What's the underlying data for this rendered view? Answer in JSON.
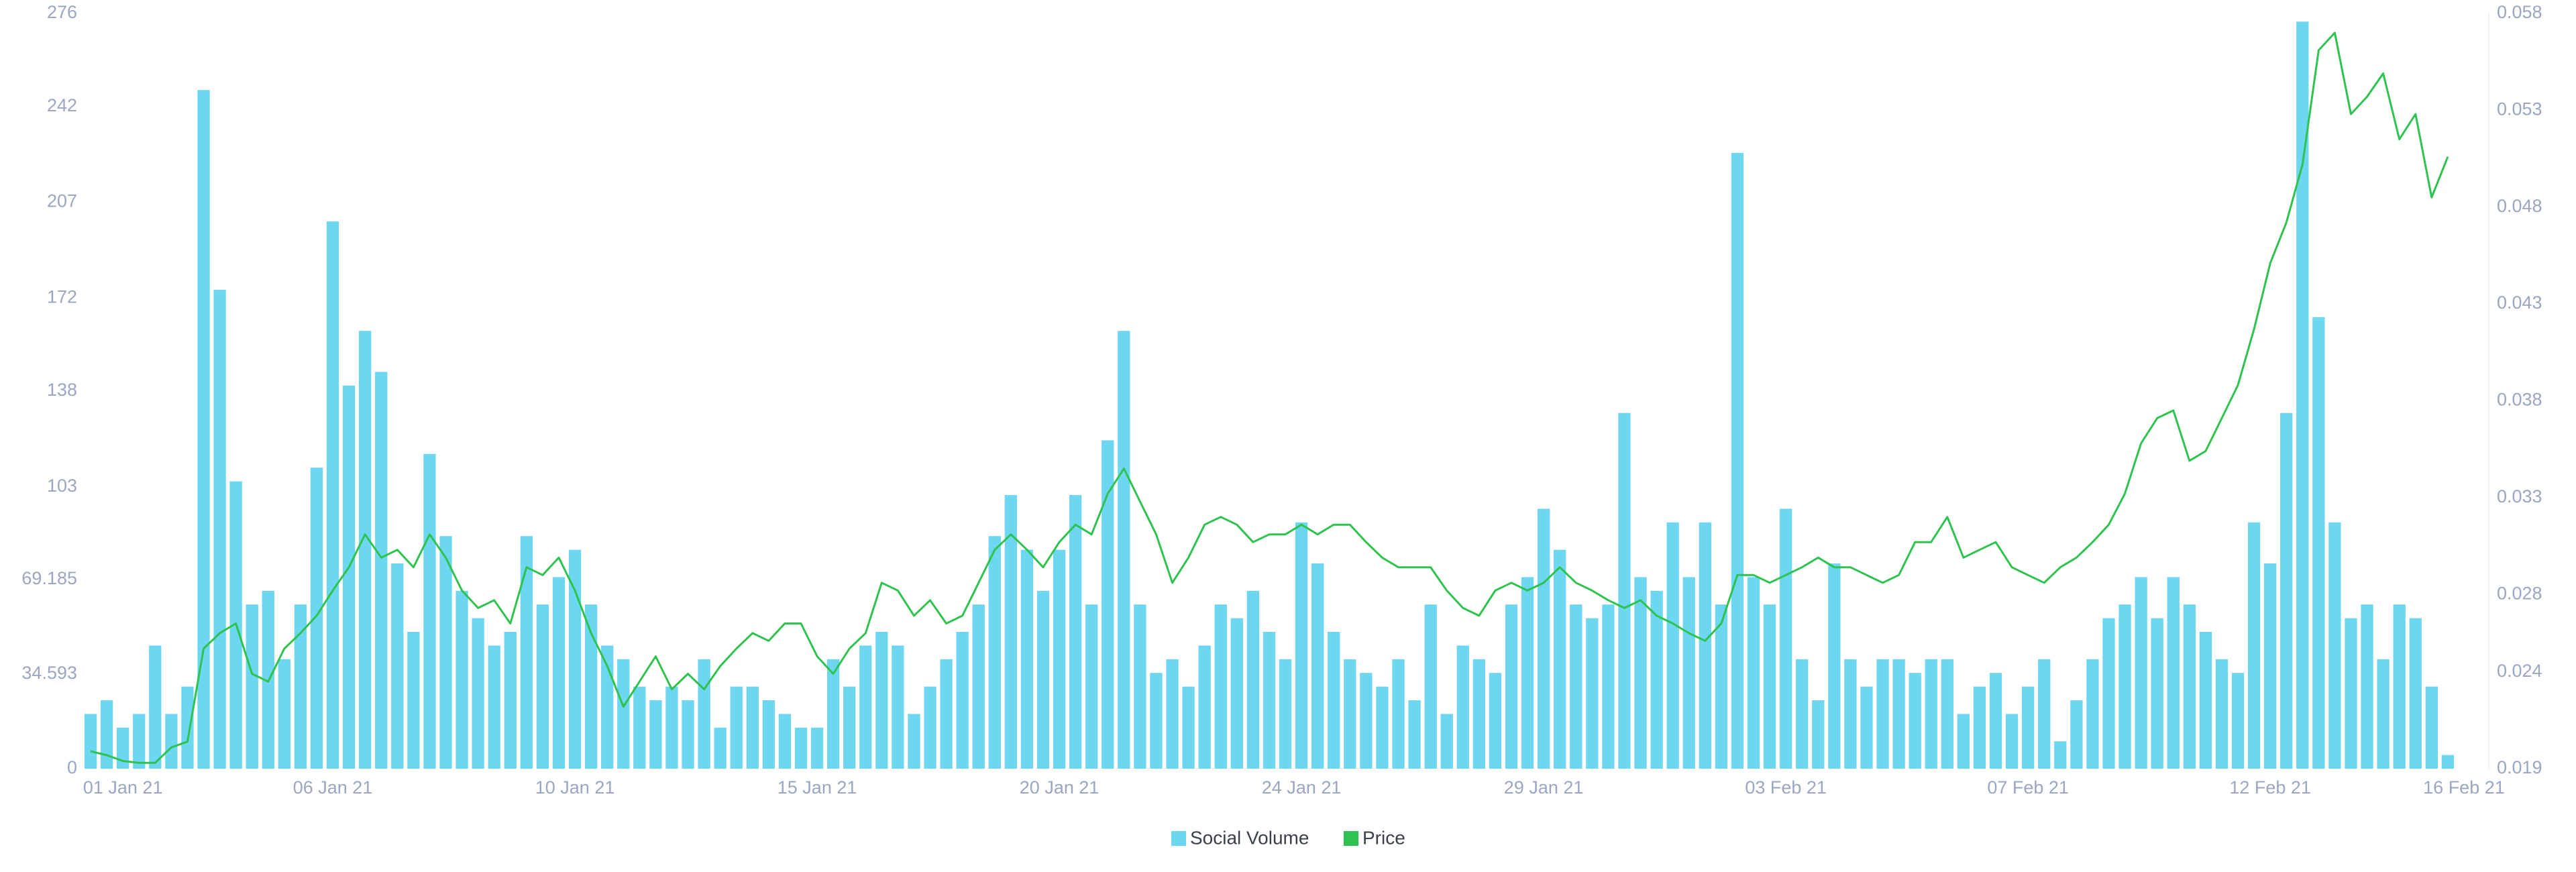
{
  "chart_data": {
    "type": "bar",
    "categories": [
      null,
      null,
      "01 Jan 21",
      null,
      null,
      null,
      null,
      null,
      null,
      null,
      null,
      null,
      null,
      null,
      null,
      "06 Jan 21",
      null,
      null,
      null,
      null,
      null,
      null,
      null,
      null,
      null,
      null,
      null,
      null,
      null,
      null,
      "10 Jan 21",
      null,
      null,
      null,
      null,
      null,
      null,
      null,
      null,
      null,
      null,
      null,
      null,
      null,
      null,
      "15 Jan 21",
      null,
      null,
      null,
      null,
      null,
      null,
      null,
      null,
      null,
      null,
      null,
      null,
      null,
      null,
      "20 Jan 21",
      null,
      null,
      null,
      null,
      null,
      null,
      null,
      null,
      null,
      null,
      null,
      null,
      null,
      null,
      "24 Jan 21",
      null,
      null,
      null,
      null,
      null,
      null,
      null,
      null,
      null,
      null,
      null,
      null,
      null,
      null,
      "29 Jan 21",
      null,
      null,
      null,
      null,
      null,
      null,
      null,
      null,
      null,
      null,
      null,
      null,
      null,
      null,
      "03 Feb 21",
      null,
      null,
      null,
      null,
      null,
      null,
      null,
      null,
      null,
      null,
      null,
      null,
      null,
      null,
      "07 Feb 21",
      null,
      null,
      null,
      null,
      null,
      null,
      null,
      null,
      null,
      null,
      null,
      null,
      null,
      null,
      "12 Feb 21",
      null,
      null,
      null,
      null,
      null,
      null,
      null,
      null,
      null,
      null,
      null,
      "16 Feb 21"
    ],
    "series": [
      {
        "name": "Social Volume",
        "type": "bar",
        "color": "#6dd6f0",
        "values": [
          20,
          25,
          15,
          20,
          45,
          20,
          30,
          248,
          175,
          105,
          60,
          65,
          40,
          60,
          110,
          200,
          140,
          160,
          145,
          75,
          50,
          115,
          85,
          65,
          55,
          45,
          50,
          85,
          60,
          70,
          80,
          60,
          45,
          40,
          30,
          25,
          30,
          25,
          40,
          15,
          30,
          30,
          25,
          20,
          15,
          15,
          40,
          30,
          45,
          50,
          45,
          20,
          30,
          40,
          50,
          60,
          85,
          100,
          80,
          65,
          80,
          100,
          60,
          120,
          160,
          60,
          35,
          40,
          30,
          45,
          60,
          55,
          65,
          50,
          40,
          90,
          75,
          50,
          40,
          35,
          30,
          40,
          25,
          60,
          20,
          45,
          40,
          35,
          60,
          70,
          95,
          80,
          60,
          55,
          60,
          130,
          70,
          65,
          90,
          70,
          90,
          60,
          225,
          70,
          60,
          95,
          40,
          25,
          75,
          40,
          30,
          40,
          40,
          35,
          40,
          40,
          20,
          30,
          35,
          20,
          30,
          40,
          10,
          25,
          40,
          55,
          60,
          70,
          55,
          70,
          60,
          50,
          40,
          35,
          90,
          75,
          130,
          273,
          165,
          90,
          55,
          60,
          40,
          60,
          55,
          30,
          5,
          null
        ]
      },
      {
        "name": "Price",
        "type": "line",
        "axis": "y2",
        "color": "#2ec24f",
        "values": [
          0.0199,
          0.0197,
          0.0194,
          0.0193,
          0.0193,
          0.0201,
          0.0204,
          0.0252,
          0.026,
          0.0265,
          0.0239,
          0.0235,
          0.0252,
          0.026,
          0.0269,
          0.0282,
          0.0294,
          0.0311,
          0.0299,
          0.0303,
          0.0294,
          0.0311,
          0.0299,
          0.0282,
          0.0273,
          0.0277,
          0.0265,
          0.0294,
          0.029,
          0.0299,
          0.0282,
          0.026,
          0.0243,
          0.0222,
          0.0235,
          0.0248,
          0.0231,
          0.0239,
          0.0231,
          0.0243,
          0.0252,
          0.026,
          0.0256,
          0.0265,
          0.0265,
          0.0248,
          0.0239,
          0.0252,
          0.026,
          0.0286,
          0.0282,
          0.0269,
          0.0277,
          0.0265,
          0.0269,
          0.0286,
          0.0303,
          0.0311,
          0.0303,
          0.0294,
          0.0307,
          0.0316,
          0.0311,
          0.0332,
          0.0345,
          0.0328,
          0.0311,
          0.0286,
          0.0299,
          0.0316,
          0.032,
          0.0316,
          0.0307,
          0.0311,
          0.0311,
          0.0316,
          0.0311,
          0.0316,
          0.0316,
          0.0307,
          0.0299,
          0.0294,
          0.0294,
          0.0294,
          0.0282,
          0.0273,
          0.0269,
          0.0282,
          0.0286,
          0.0282,
          0.0286,
          0.0294,
          0.0286,
          0.0282,
          0.0277,
          0.0273,
          0.0277,
          0.0269,
          0.0265,
          0.026,
          0.0256,
          0.0265,
          0.029,
          0.029,
          0.0286,
          0.029,
          0.0294,
          0.0299,
          0.0294,
          0.0294,
          0.029,
          0.0286,
          0.029,
          0.0307,
          0.0307,
          0.032,
          0.0299,
          0.0303,
          0.0307,
          0.0294,
          0.029,
          0.0286,
          0.0294,
          0.0299,
          0.0307,
          0.0316,
          0.0332,
          0.0358,
          0.0371,
          0.0375,
          0.0349,
          0.0354,
          0.0371,
          0.0388,
          0.0417,
          0.0451,
          0.0472,
          0.0502,
          0.0561,
          0.057,
          0.0528,
          0.0537,
          0.0549,
          0.0515,
          0.0528,
          0.0485,
          0.0506,
          null
        ]
      }
    ],
    "ylim": [
      0,
      276
    ],
    "yticks": [
      0,
      34.593,
      69.185,
      103,
      138,
      172,
      207,
      242,
      276
    ],
    "y2lim": [
      0.019,
      0.058
    ],
    "y2ticks": [
      0.019,
      0.024,
      0.028,
      0.033,
      0.038,
      0.043,
      0.048,
      0.053,
      0.058
    ],
    "legend": "bottom"
  }
}
